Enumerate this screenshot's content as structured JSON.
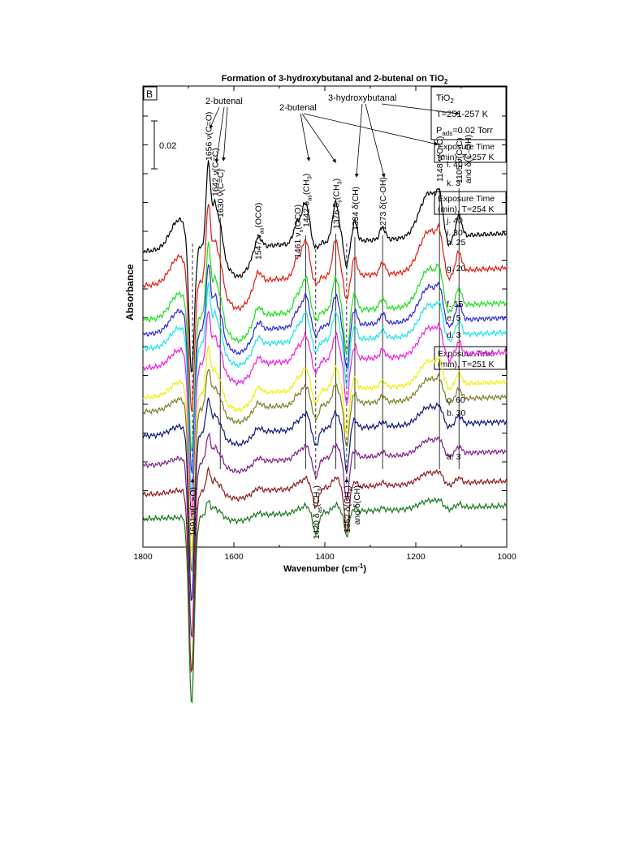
{
  "chart_data": {
    "type": "line",
    "title": "Formation of 3-hydroxybutanal and 2-butenal on TiO",
    "title_sub": "2",
    "panel_label": "B",
    "xlabel": "Wavenumber (cm",
    "xlabel_sup": "-1",
    "xlabel_end": ")",
    "ylabel": "Absorbance",
    "xlim": [
      1800,
      1000
    ],
    "x_reversed": true,
    "x_ticks": [
      "1800",
      "1600",
      "1400",
      "1200",
      "1000"
    ],
    "x_tick_values": [
      1800,
      1600,
      1400,
      1200,
      1000
    ],
    "scale_bar": "0.02",
    "conditions": {
      "line1": "TiO",
      "line1_sub": "2",
      "line2": "T=251-257 K",
      "line3a": "P",
      "line3_sub": "ads",
      "line3b": "=0.02 Torr"
    },
    "group_labels": [
      {
        "line1": "Exposure Time",
        "line2": "(min), T=257 K"
      },
      {
        "line1": "Exposure Time",
        "line2": "(min), T=254 K"
      },
      {
        "line1": "Exposure Time",
        "line2": "(min), T=251 K"
      }
    ],
    "species_labels": {
      "butenal_left": "2-butenal",
      "butenal_mid": "2-butenal",
      "hydroxy": "3-hydroxybutanal"
    },
    "peaks_top": [
      {
        "wn": 1656,
        "text": "1656 ν(C=O)"
      },
      {
        "wn": 1642,
        "text": "1642 ν(C=C)"
      },
      {
        "wn": 1630,
        "text": "1630 ν(C=C)"
      },
      {
        "wn": 1547,
        "text": "1547 ν",
        "sub": "as",
        "tail": "(OCO)"
      },
      {
        "wn": 1461,
        "text": "1461 ν",
        "sub": "s",
        "tail": "(OCO)"
      },
      {
        "wn": 1442,
        "text": "1442 δ",
        "sub": "as",
        "tail": "(CH",
        "sub2": "3",
        "tail2": ")"
      },
      {
        "wn": 1376,
        "text": "1376 δ",
        "sub": "s",
        "tail": "(CH",
        "sub2": "3",
        "tail2": ")"
      },
      {
        "wn": 1334,
        "text": "1334 δ(CH)"
      },
      {
        "wn": 1273,
        "text": "1273 δ(C-OH)"
      },
      {
        "wn": 1148,
        "text": "1148 ν(C-C)"
      },
      {
        "wn": 1105,
        "text": "1105 ν(C-C)",
        "line2": "and δ(C-OH)"
      }
    ],
    "peaks_bottom": [
      {
        "wn": 1691,
        "text": "1691 ν(C=O)"
      },
      {
        "wn": 1420,
        "text": "1420 δ",
        "sub": "as",
        "tail": "(CH",
        "sub2": "3",
        "tail2": ")"
      },
      {
        "wn": 1352,
        "text": "1352 δ(CH",
        "sub2": "3",
        "tail2": ")",
        "line2": "and δ(CH)"
      }
    ],
    "reference_lines": {
      "solid": [
        1630,
        1442,
        1376,
        1334,
        1273,
        1148,
        1105
      ],
      "dashed": [
        1691,
        1420,
        1352
      ]
    },
    "series": [
      {
        "name": "l. 40",
        "color": "#000000",
        "baseline": 0.094
      },
      {
        "name": "k. 3",
        "color": "#e4190f",
        "baseline": 0.08
      },
      {
        "name": "j. 40",
        "color": "#18e018",
        "baseline": 0.066
      },
      {
        "name": "i. 30",
        "color": "#2a25d8",
        "baseline": 0.06
      },
      {
        "name": "h. 25",
        "color": "#19e6e6",
        "baseline": 0.054
      },
      {
        "name": "g. 20",
        "color": "#f01ce2",
        "baseline": 0.046
      },
      {
        "name": "f. 15",
        "color": "#eeee10",
        "baseline": 0.034
      },
      {
        "name": "e. 5",
        "color": "#7d7d22",
        "baseline": 0.028
      },
      {
        "name": "d. 3",
        "color": "#101878",
        "baseline": 0.018
      },
      {
        "name": "c. 60",
        "color": "#7d1f86",
        "baseline": 0.006
      },
      {
        "name": "b. 30",
        "color": "#8b1a1a",
        "baseline": -0.006
      },
      {
        "name": "a. 3",
        "color": "#1a7a1a",
        "baseline": -0.016
      }
    ]
  }
}
